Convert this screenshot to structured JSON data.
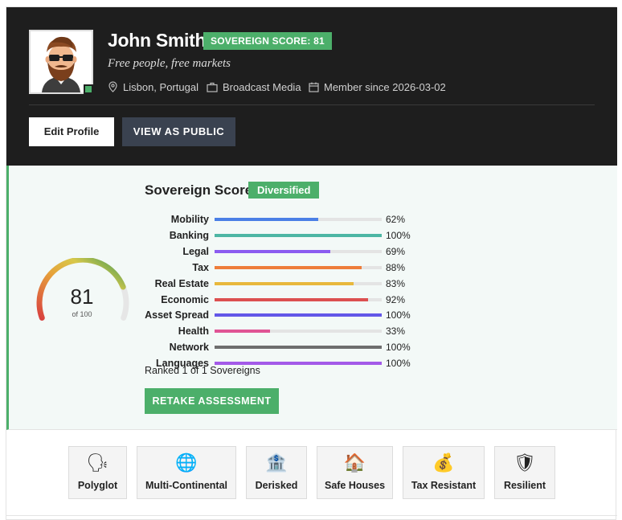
{
  "profile": {
    "name": "John Smith",
    "score_badge": "SOVEREIGN SCORE: 81",
    "tagline": "Free people, free markets",
    "location": "Lisbon, Portugal",
    "industry": "Broadcast Media",
    "member_since": "Member since 2026-03-02",
    "edit_label": "Edit Profile",
    "public_label": "VIEW AS PUBLIC",
    "avatar_icon": "bearded-man-avatar-icon"
  },
  "score": {
    "title": "Sovereign Score",
    "tier": "Diversified",
    "value": "81",
    "of_label": "of 100",
    "gauge_fraction": 0.81,
    "ranked": "Ranked 1 of 1 Sovereigns",
    "retake_label": "RETAKE ASSESSMENT",
    "metrics": [
      {
        "label": "Mobility",
        "pct": "62%",
        "value": 62,
        "color": "#4a7fe6"
      },
      {
        "label": "Banking",
        "pct": "100%",
        "value": 100,
        "color": "#4db6a4"
      },
      {
        "label": "Legal",
        "pct": "69%",
        "value": 69,
        "color": "#8b5cf0"
      },
      {
        "label": "Tax",
        "pct": "88%",
        "value": 88,
        "color": "#ee7d3a"
      },
      {
        "label": "Real Estate",
        "pct": "83%",
        "value": 83,
        "color": "#e8b83c"
      },
      {
        "label": "Economic",
        "pct": "92%",
        "value": 92,
        "color": "#dc5050"
      },
      {
        "label": "Asset Spread",
        "pct": "100%",
        "value": 100,
        "color": "#6357e8"
      },
      {
        "label": "Health",
        "pct": "33%",
        "value": 33,
        "color": "#e05595"
      },
      {
        "label": "Network",
        "pct": "100%",
        "value": 100,
        "color": "#6e6e6e"
      },
      {
        "label": "Languages",
        "pct": "100%",
        "value": 100,
        "color": "#a35ae8"
      }
    ]
  },
  "badges": [
    {
      "label": "Polyglot",
      "icon": "speaking-head-icon",
      "glyph": "🗣"
    },
    {
      "label": "Multi-Continental",
      "icon": "globe-icon",
      "glyph": "🌐"
    },
    {
      "label": "Derisked",
      "icon": "bank-icon",
      "glyph": "🏦"
    },
    {
      "label": "Safe Houses",
      "icon": "house-icon",
      "glyph": "🏠"
    },
    {
      "label": "Tax Resistant",
      "icon": "money-bag-icon",
      "glyph": "💰"
    },
    {
      "label": "Resilient",
      "icon": "shield-icon",
      "glyph": "🛡"
    }
  ]
}
